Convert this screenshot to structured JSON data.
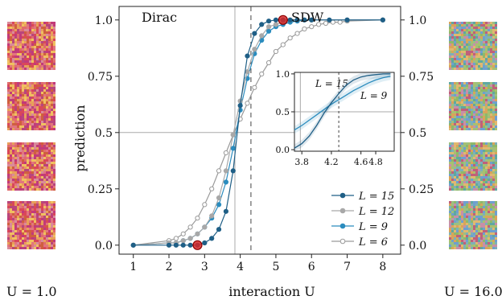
{
  "chart_data": [
    {
      "type": "line",
      "xlabel": "interaction U",
      "ylabel": "prediction",
      "xlim": [
        0.6,
        8.5
      ],
      "ylim": [
        -0.04,
        1.06
      ],
      "x_ticks": [
        "1",
        "2",
        "3",
        "4",
        "5",
        "6",
        "7",
        "8"
      ],
      "y_ticks_left": [
        "0.0",
        "0.25",
        "0.5",
        "0.75",
        "1.0"
      ],
      "y_ticks_right": [
        "0.0",
        "0.25",
        "0.5",
        "0.75",
        "1.0"
      ],
      "annotations": [
        "Dirac",
        "SDW"
      ],
      "legend_position": "lower-right",
      "grid": false,
      "reference_lines": {
        "solid_vertical_x": 3.85,
        "dashed_vertical_x": 4.3,
        "horizontal_y": 0.5
      },
      "highlight_points": [
        {
          "x": 2.8,
          "y": 0.0
        },
        {
          "x": 5.2,
          "y": 1.0
        }
      ],
      "series": [
        {
          "name": "L = 15",
          "color": "#1f5f86",
          "marker": "filled",
          "x": [
            1,
            2,
            2.2,
            2.4,
            2.6,
            2.8,
            3.0,
            3.2,
            3.4,
            3.6,
            3.8,
            4.0,
            4.2,
            4.4,
            4.6,
            4.8,
            5.0,
            5.2,
            5.4,
            5.6,
            5.8,
            6.0,
            6.5,
            7.0,
            8.0
          ],
          "y": [
            0.0,
            0.0,
            0.0,
            0.0,
            0.0,
            0.0,
            0.01,
            0.03,
            0.07,
            0.15,
            0.33,
            0.62,
            0.84,
            0.94,
            0.98,
            0.995,
            1.0,
            1.0,
            1.0,
            1.0,
            1.0,
            1.0,
            1.0,
            1.0,
            1.0
          ]
        },
        {
          "name": "L = 12",
          "color": "#a8a8a8",
          "marker": "filled",
          "x": [
            1,
            2,
            2.2,
            2.4,
            2.6,
            2.8,
            3.0,
            3.2,
            3.4,
            3.6,
            3.8,
            4.0,
            4.2,
            4.4,
            4.6,
            4.8,
            5.0,
            5.2,
            5.4,
            5.6,
            5.8,
            6.0,
            7.0,
            8.0
          ],
          "y": [
            0.0,
            0.01,
            0.01,
            0.02,
            0.03,
            0.05,
            0.08,
            0.13,
            0.21,
            0.33,
            0.49,
            0.64,
            0.77,
            0.87,
            0.93,
            0.97,
            0.98,
            0.99,
            1.0,
            1.0,
            1.0,
            1.0,
            1.0,
            1.0
          ]
        },
        {
          "name": "L = 9",
          "color": "#2b8cbe",
          "marker": "filled",
          "x": [
            1,
            2,
            2.2,
            2.4,
            2.6,
            2.8,
            3.0,
            3.2,
            3.4,
            3.6,
            3.8,
            4.0,
            4.2,
            4.4,
            4.6,
            4.8,
            5.0,
            5.2,
            5.4,
            5.6,
            5.8,
            6.0,
            7.0,
            8.0
          ],
          "y": [
            0.0,
            0.01,
            0.01,
            0.02,
            0.03,
            0.05,
            0.08,
            0.12,
            0.18,
            0.28,
            0.43,
            0.6,
            0.74,
            0.85,
            0.91,
            0.95,
            0.97,
            0.98,
            0.99,
            0.995,
            1.0,
            1.0,
            1.0,
            1.0
          ]
        },
        {
          "name": "L = 6",
          "color": "#9a9a9a",
          "marker": "open",
          "x": [
            1,
            2,
            2.2,
            2.4,
            2.6,
            2.8,
            3.0,
            3.2,
            3.4,
            3.6,
            3.8,
            4.0,
            4.2,
            4.4,
            4.6,
            4.8,
            5.0,
            5.2,
            5.4,
            5.6,
            5.8,
            6.0,
            6.2,
            6.4,
            6.6,
            6.8,
            7.0,
            8.0
          ],
          "y": [
            0.0,
            0.02,
            0.03,
            0.05,
            0.08,
            0.12,
            0.18,
            0.25,
            0.33,
            0.41,
            0.49,
            0.56,
            0.63,
            0.7,
            0.76,
            0.81,
            0.86,
            0.89,
            0.92,
            0.94,
            0.96,
            0.97,
            0.98,
            0.985,
            0.99,
            0.99,
            0.995,
            1.0
          ]
        }
      ]
    },
    {
      "type": "line",
      "xlim": [
        3.7,
        5.05
      ],
      "ylim": [
        -0.02,
        1.02
      ],
      "x_ticks": [
        "3.8",
        "4.2",
        "4.6",
        "4.8"
      ],
      "y_ticks": [
        "0.0",
        "0.5",
        "1.0"
      ],
      "reference_lines": {
        "solid_vertical_x": 3.78,
        "dashed_vertical_x": 4.3,
        "horizontal_y": 0.5
      },
      "series": [
        {
          "name": "L = 15",
          "color": "#1f5f86",
          "x": [
            3.7,
            3.8,
            3.9,
            4.0,
            4.1,
            4.2,
            4.3,
            4.4,
            4.5,
            4.6,
            4.7,
            4.8,
            4.9,
            5.0
          ],
          "y": [
            0.02,
            0.08,
            0.18,
            0.32,
            0.48,
            0.62,
            0.74,
            0.85,
            0.92,
            0.96,
            0.98,
            0.99,
            1.0,
            1.0
          ]
        },
        {
          "name": "L = 9",
          "color": "#2b8cbe",
          "x": [
            3.7,
            3.8,
            3.9,
            4.0,
            4.1,
            4.2,
            4.3,
            4.4,
            4.5,
            4.6,
            4.7,
            4.8,
            4.9,
            5.0
          ],
          "y": [
            0.26,
            0.32,
            0.39,
            0.46,
            0.53,
            0.6,
            0.66,
            0.72,
            0.78,
            0.83,
            0.88,
            0.92,
            0.95,
            0.97
          ]
        }
      ],
      "labels": [
        "L = 15",
        "L = 9"
      ]
    }
  ],
  "side_labels": {
    "left": "U = 1.0",
    "right": "U = 16.0"
  },
  "colors": {
    "dark_blue": "#1f5f86",
    "mid_blue": "#2b8cbe",
    "grey": "#a8a8a8",
    "highlight": "#d62728"
  }
}
